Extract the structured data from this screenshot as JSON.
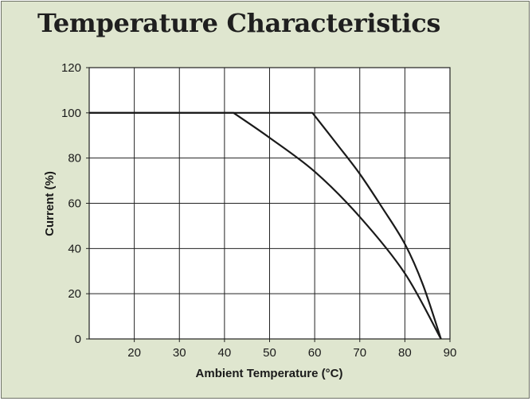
{
  "slide": {
    "title": "Temperature Characteristics",
    "background_color": "#dfe6cf",
    "line_color": "#1a1a1a"
  },
  "chart_data": {
    "type": "line",
    "title": "",
    "xlabel": "Ambient Temperature (°C)",
    "ylabel": "Current (%)",
    "xlim": [
      10,
      90
    ],
    "ylim": [
      0,
      120
    ],
    "x_ticks": [
      20,
      30,
      40,
      50,
      60,
      70,
      80,
      90
    ],
    "y_ticks": [
      0,
      20,
      40,
      60,
      80,
      100,
      120
    ],
    "grid": true,
    "legend": "none",
    "series": [
      {
        "x": [
          10,
          42,
          50,
          60,
          70,
          80,
          88
        ],
        "y": [
          100,
          100,
          89,
          74,
          54,
          29,
          0
        ]
      },
      {
        "x": [
          10,
          59.5,
          65,
          70,
          75,
          80,
          84,
          88
        ],
        "y": [
          100,
          100,
          86,
          73,
          58,
          42,
          24,
          0
        ]
      }
    ]
  }
}
